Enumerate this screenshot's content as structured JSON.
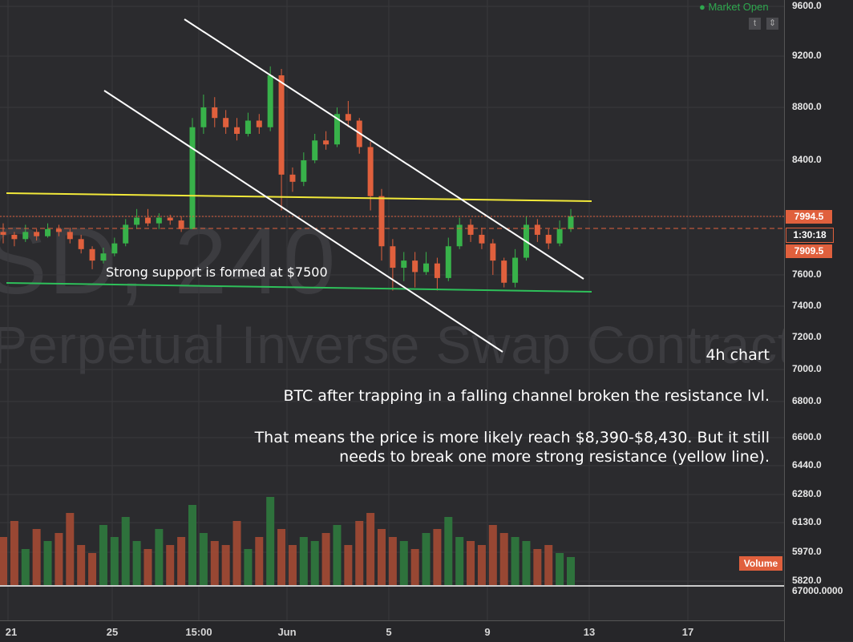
{
  "chart_data": {
    "type": "candlestick",
    "timeframe": "4h",
    "y_axis_ticks": [
      "9600.0",
      "9200.0",
      "8800.0",
      "8400.0",
      "7600.0",
      "7400.0",
      "7200.0",
      "7000.0",
      "6800.0",
      "6600.0",
      "6440.0",
      "6280.0",
      "6130.0",
      "5970.0",
      "5820.0"
    ],
    "y_axis_bottom_label": "67000.0000",
    "x_axis_ticks": [
      "21",
      "25",
      "15:00",
      "Jun",
      "5",
      "9",
      "13",
      "17"
    ],
    "price_tags": {
      "last_price": "7994.5",
      "countdown": "1:30:18",
      "lower_price": "7909.5"
    },
    "volume_label": "Volume",
    "candles": [
      [
        7900,
        7880,
        7960,
        7820
      ],
      [
        7880,
        7850,
        7900,
        7800
      ],
      [
        7850,
        7900,
        7950,
        7830
      ],
      [
        7900,
        7870,
        7920,
        7840
      ],
      [
        7870,
        7920,
        7960,
        7860
      ],
      [
        7920,
        7900,
        7950,
        7870
      ],
      [
        7900,
        7850,
        7930,
        7820
      ],
      [
        7850,
        7780,
        7880,
        7750
      ],
      [
        7780,
        7700,
        7800,
        7640
      ],
      [
        7700,
        7750,
        7790,
        7680
      ],
      [
        7750,
        7820,
        7860,
        7730
      ],
      [
        7820,
        7950,
        7990,
        7800
      ],
      [
        7950,
        8000,
        8060,
        7920
      ],
      [
        8000,
        7960,
        8060,
        7940
      ],
      [
        7960,
        8000,
        8030,
        7920
      ],
      [
        8000,
        7980,
        8020,
        7950
      ],
      [
        7980,
        7920,
        8010,
        7900
      ],
      [
        7920,
        8650,
        8720,
        7920
      ],
      [
        8650,
        8800,
        8900,
        8600
      ],
      [
        8800,
        8720,
        8880,
        8650
      ],
      [
        8720,
        8650,
        8780,
        8600
      ],
      [
        8650,
        8600,
        8720,
        8550
      ],
      [
        8600,
        8700,
        8760,
        8580
      ],
      [
        8700,
        8650,
        8750,
        8600
      ],
      [
        8650,
        9050,
        9120,
        8620
      ],
      [
        9050,
        8300,
        9100,
        8050
      ],
      [
        8300,
        8250,
        8350,
        8180
      ],
      [
        8250,
        8400,
        8460,
        8220
      ],
      [
        8400,
        8550,
        8600,
        8380
      ],
      [
        8550,
        8520,
        8620,
        8480
      ],
      [
        8520,
        8750,
        8800,
        8500
      ],
      [
        8750,
        8700,
        8850,
        8650
      ],
      [
        8700,
        8500,
        8720,
        8450
      ],
      [
        8500,
        8150,
        8540,
        8050
      ],
      [
        8150,
        7800,
        8200,
        7700
      ],
      [
        7800,
        7650,
        7850,
        7500
      ],
      [
        7650,
        7700,
        7760,
        7560
      ],
      [
        7700,
        7620,
        7760,
        7520
      ],
      [
        7620,
        7680,
        7760,
        7600
      ],
      [
        7680,
        7580,
        7720,
        7500
      ],
      [
        7580,
        7800,
        7860,
        7560
      ],
      [
        7800,
        7950,
        8000,
        7780
      ],
      [
        7950,
        7880,
        7990,
        7830
      ],
      [
        7880,
        7820,
        7930,
        7780
      ],
      [
        7820,
        7700,
        7850,
        7600
      ],
      [
        7700,
        7550,
        7720,
        7520
      ],
      [
        7550,
        7720,
        7780,
        7520
      ],
      [
        7720,
        7950,
        8010,
        7700
      ],
      [
        7950,
        7880,
        7990,
        7830
      ],
      [
        7880,
        7820,
        7920,
        7780
      ],
      [
        7820,
        7920,
        7980,
        7800
      ],
      [
        7920,
        8010,
        8060,
        7900
      ]
    ]
  }
}
